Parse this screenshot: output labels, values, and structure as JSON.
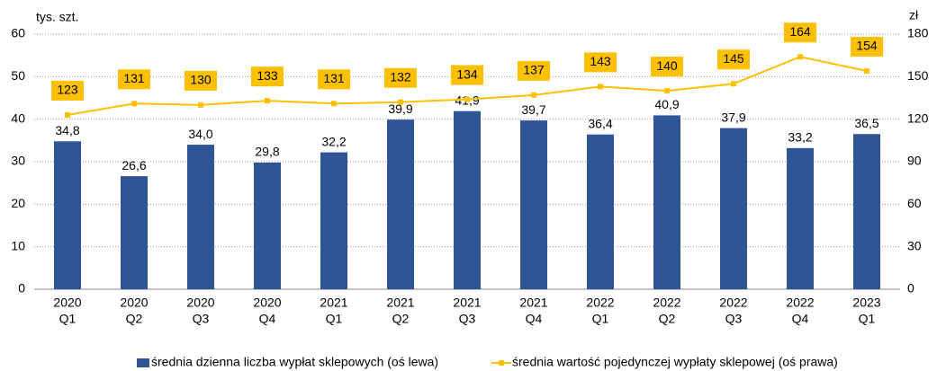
{
  "chart_data": {
    "type": "bar-line",
    "ylabel": "tys. szt.",
    "y2label": "zł",
    "categories": [
      [
        "2020",
        "Q1"
      ],
      [
        "2020",
        "Q2"
      ],
      [
        "2020",
        "Q3"
      ],
      [
        "2020",
        "Q4"
      ],
      [
        "2021",
        "Q1"
      ],
      [
        "2021",
        "Q2"
      ],
      [
        "2021",
        "Q3"
      ],
      [
        "2021",
        "Q4"
      ],
      [
        "2022",
        "Q1"
      ],
      [
        "2022",
        "Q2"
      ],
      [
        "2022",
        "Q3"
      ],
      [
        "2022",
        "Q4"
      ],
      [
        "2023",
        "Q1"
      ]
    ],
    "series": [
      {
        "name": "średnia dzienna liczba wypłat sklepowych (oś lewa)",
        "color": "#2f5597",
        "values": [
          34.8,
          26.6,
          34.0,
          29.8,
          32.2,
          39.9,
          41.9,
          39.7,
          36.4,
          40.9,
          37.9,
          33.2,
          36.5
        ],
        "value_labels": [
          "34,8",
          "26,6",
          "34,0",
          "29,8",
          "32,2",
          "39,9",
          "41,9",
          "39,7",
          "36,4",
          "40,9",
          "37,9",
          "33,2",
          "36,5"
        ]
      },
      {
        "name": "średnia wartość pojedynczej wypłaty sklepowej (oś prawa)",
        "color": "#ffc000",
        "axis": "y2",
        "values": [
          123,
          131,
          130,
          133,
          131,
          132,
          134,
          137,
          143,
          140,
          145,
          164,
          154
        ]
      }
    ],
    "ylim": [
      0,
      60
    ],
    "yticks": [
      0,
      10,
      20,
      30,
      40,
      50,
      60
    ],
    "y2lim": [
      0,
      180
    ],
    "y2ticks": [
      0,
      30,
      60,
      90,
      120,
      150,
      180
    ],
    "grid": true
  }
}
